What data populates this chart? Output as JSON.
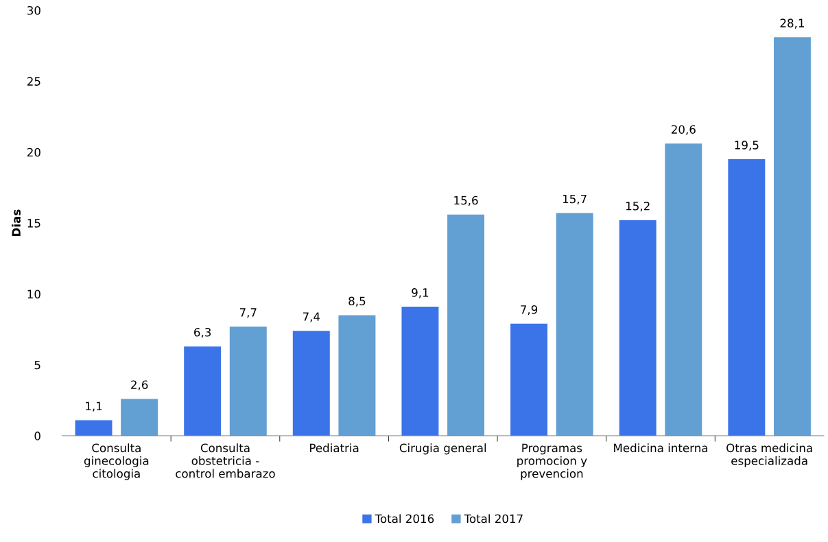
{
  "chart_data": {
    "type": "bar",
    "ylabel": "Dias",
    "categories": [
      "Consulta\nginecologia\ncitologia",
      "Consulta\nobstetricia -\ncontrol embarazo",
      "Pediatria",
      "Cirugia general",
      "Programas\npromocion y\nprevencion",
      "Medicina interna",
      "Otras medicina\nespecializada"
    ],
    "series": [
      {
        "name": "Total 2016",
        "color": "#3b73e8",
        "values": [
          1.1,
          6.3,
          7.4,
          9.1,
          7.9,
          15.2,
          19.5
        ],
        "value_labels": [
          "1,1",
          "6,3",
          "7,4",
          "9,1",
          "7,9",
          "15,2",
          "19,5"
        ]
      },
      {
        "name": "Total 2017",
        "color": "#629fd3",
        "values": [
          2.6,
          7.7,
          8.5,
          15.6,
          15.7,
          20.6,
          28.1
        ],
        "value_labels": [
          "2,6",
          "7,7",
          "8,5",
          "15,6",
          "15,7",
          "20,6",
          "28,1"
        ]
      }
    ],
    "ylim": [
      0,
      30
    ],
    "yticks": [
      0,
      5,
      10,
      15,
      20,
      25,
      30
    ],
    "grid": false,
    "legend": "bottom"
  }
}
